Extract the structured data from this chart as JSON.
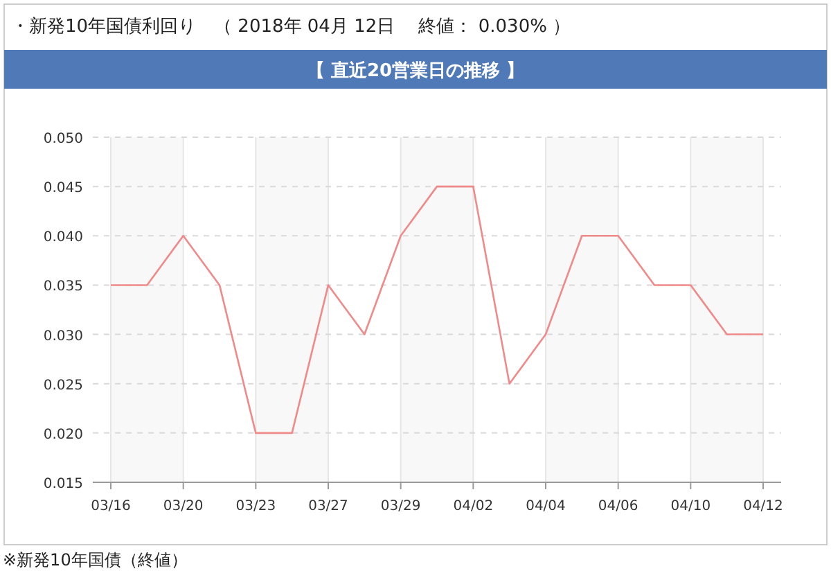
{
  "chart_data": {
    "type": "line",
    "title": "・新発10年国債利回り　（ 2018年 04月 12日　 終値： 0.030% ）",
    "subtitle": "【 直近20営業日の推移 】",
    "annotations": [
      "※新発10年国債（終値）"
    ],
    "categories": [
      "03/16",
      null,
      "03/20",
      null,
      "03/23",
      null,
      "03/27",
      null,
      "03/29",
      null,
      "04/02",
      null,
      "04/04",
      null,
      "04/06",
      null,
      "04/10",
      null,
      "04/12"
    ],
    "series": [
      {
        "color": "#f08a8a",
        "values": [
          0.035,
          0.035,
          0.04,
          0.035,
          0.02,
          0.02,
          0.035,
          0.03,
          0.04,
          0.045,
          0.045,
          0.025,
          0.03,
          0.04,
          0.04,
          0.035,
          0.035,
          0.03,
          0.03
        ]
      }
    ],
    "ylim": [
      0.015,
      0.05
    ],
    "yticks": [
      {
        "value": 0.015,
        "label": "0.015"
      },
      {
        "value": 0.02,
        "label": "0.020"
      },
      {
        "value": 0.025,
        "label": "0.025"
      },
      {
        "value": 0.03,
        "label": "0.030"
      },
      {
        "value": 0.035,
        "label": "0.035"
      },
      {
        "value": 0.04,
        "label": "0.040"
      },
      {
        "value": 0.045,
        "label": "0.045"
      },
      {
        "value": 0.05,
        "label": "0.050"
      }
    ],
    "bands": [
      {
        "axis": "x",
        "from": "03/16",
        "to": "03/20",
        "color": "#f8f8f8"
      },
      {
        "axis": "x",
        "from": "03/23",
        "to": "03/27",
        "color": "#f8f8f8"
      },
      {
        "axis": "x",
        "from": "03/29",
        "to": "04/02",
        "color": "#f8f8f8"
      },
      {
        "axis": "x",
        "from": "04/04",
        "to": "04/06",
        "color": "#f8f8f8"
      },
      {
        "axis": "x",
        "from": "04/10",
        "to": "04/12",
        "color": "#f8f8f8"
      }
    ],
    "grid": true,
    "marker": "none",
    "line_style": "solid"
  }
}
